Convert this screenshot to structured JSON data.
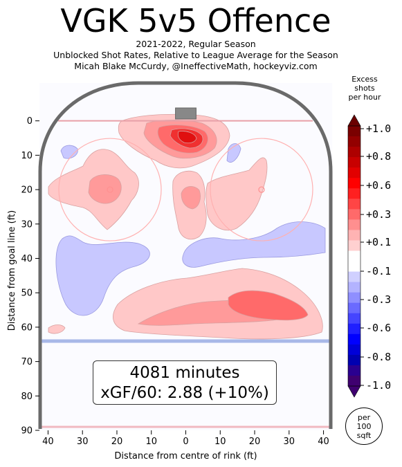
{
  "header": {
    "title": "VGK 5v5 Offence",
    "subtitle_lines": [
      "2021-2022, Regular Season",
      "Unblocked Shot Rates, Relative to League Average for the Season",
      "Micah Blake McCurdy, @IneffectiveMath, hockeyviz.com"
    ]
  },
  "summary": {
    "minutes_text": "4081 minutes",
    "xgf_text": "xGF/60: 2.88 (+10%)"
  },
  "colorbar": {
    "title_lines": [
      "Excess",
      "shots",
      "per hour"
    ],
    "tick_labels": [
      "+1.0",
      "+0.8",
      "+0.6",
      "+0.3",
      "+0.1",
      "-0.1",
      "-0.3",
      "-0.6",
      "-0.8",
      "-1.0"
    ],
    "colors": [
      "#7a0000",
      "#930000",
      "#ad0000",
      "#c80000",
      "#e20000",
      "#ff0000",
      "#ff2020",
      "#ff4545",
      "#ff6a6a",
      "#ff8f8f",
      "#ffb3b3",
      "#ffd0d0",
      "#ffffff",
      "#ffffff",
      "#d0d0ff",
      "#b3b3ff",
      "#8f8fff",
      "#6a6aff",
      "#4545ff",
      "#2020ff",
      "#0000ff",
      "#0000d8",
      "#0000b0",
      "#2a0090",
      "#3f0070"
    ]
  },
  "per_area_label": [
    "per",
    "100",
    "sqft"
  ],
  "chart_data": {
    "type": "heatmap",
    "xlabel": "Distance from centre of rink (ft)",
    "ylabel": "Distance from goal line (ft)",
    "x_ticks": [
      40,
      30,
      20,
      10,
      0,
      10,
      20,
      30,
      40
    ],
    "x_tick_values": [
      -40,
      -30,
      -20,
      -10,
      0,
      10,
      20,
      30,
      40
    ],
    "y_ticks": [
      0,
      10,
      20,
      30,
      40,
      50,
      60,
      70,
      80,
      90
    ],
    "xlim": [
      -42.5,
      42.5
    ],
    "ylim": [
      -11,
      90
    ],
    "colorbar_range": [
      -1.0,
      1.0
    ],
    "regions": [
      {
        "label": "slot",
        "x": 0,
        "y": 5,
        "level": 0.8
      },
      {
        "label": "slot-inner",
        "x": 0,
        "y": 3,
        "level": 1.0
      },
      {
        "label": "left circle",
        "x": -22,
        "y": 22,
        "level": 0.3
      },
      {
        "label": "high slot",
        "x": 2,
        "y": 22,
        "level": 0.3
      },
      {
        "label": "right circle",
        "x": 20,
        "y": 22,
        "level": 0.1
      },
      {
        "label": "left point area",
        "x": -30,
        "y": 42,
        "level": -0.1
      },
      {
        "label": "blue line band",
        "x": 5,
        "y": 53,
        "level": 0.3
      },
      {
        "label": "blue line band inner",
        "x": 15,
        "y": 53,
        "level": 0.6
      },
      {
        "label": "right boards",
        "x": 30,
        "y": 36,
        "level": -0.1
      }
    ]
  }
}
